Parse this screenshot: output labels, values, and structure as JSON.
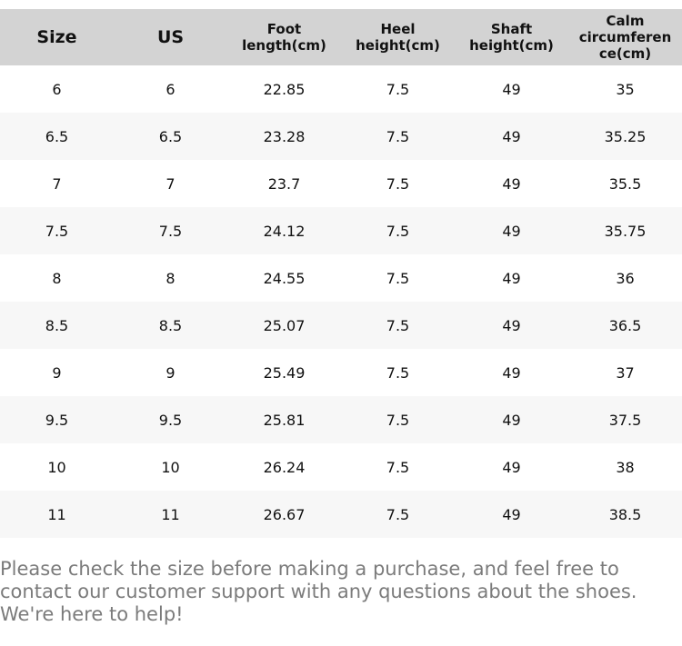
{
  "chart_data": {
    "type": "table",
    "title": "",
    "columns": [
      "Size",
      "US",
      "Foot length(cm)",
      "Heel height(cm)",
      "Shaft height(cm)",
      "Calm circumference(cm)"
    ],
    "rows": [
      [
        "6",
        "6",
        "22.85",
        "7.5",
        "49",
        "35"
      ],
      [
        "6.5",
        "6.5",
        "23.28",
        "7.5",
        "49",
        "35.25"
      ],
      [
        "7",
        "7",
        "23.7",
        "7.5",
        "49",
        "35.5"
      ],
      [
        "7.5",
        "7.5",
        "24.12",
        "7.5",
        "49",
        "35.75"
      ],
      [
        "8",
        "8",
        "24.55",
        "7.5",
        "49",
        "36"
      ],
      [
        "8.5",
        "8.5",
        "25.07",
        "7.5",
        "49",
        "36.5"
      ],
      [
        "9",
        "9",
        "25.49",
        "7.5",
        "49",
        "37"
      ],
      [
        "9.5",
        "9.5",
        "25.81",
        "7.5",
        "49",
        "37.5"
      ],
      [
        "10",
        "10",
        "26.24",
        "7.5",
        "49",
        "38"
      ],
      [
        "11",
        "11",
        "26.67",
        "7.5",
        "49",
        "38.5"
      ]
    ],
    "layout": {
      "zebra_striping": true,
      "header_large_font_columns": [
        0,
        1
      ]
    }
  },
  "note": "Please check the size before making a purchase, and feel free to contact our customer support with any questions about the shoes. We're here to help!",
  "colors": {
    "header_bg": "#d3d3d3",
    "stripe_bg": "#f7f7f7",
    "note_text": "#7b7b7b",
    "body_text": "#111111"
  }
}
